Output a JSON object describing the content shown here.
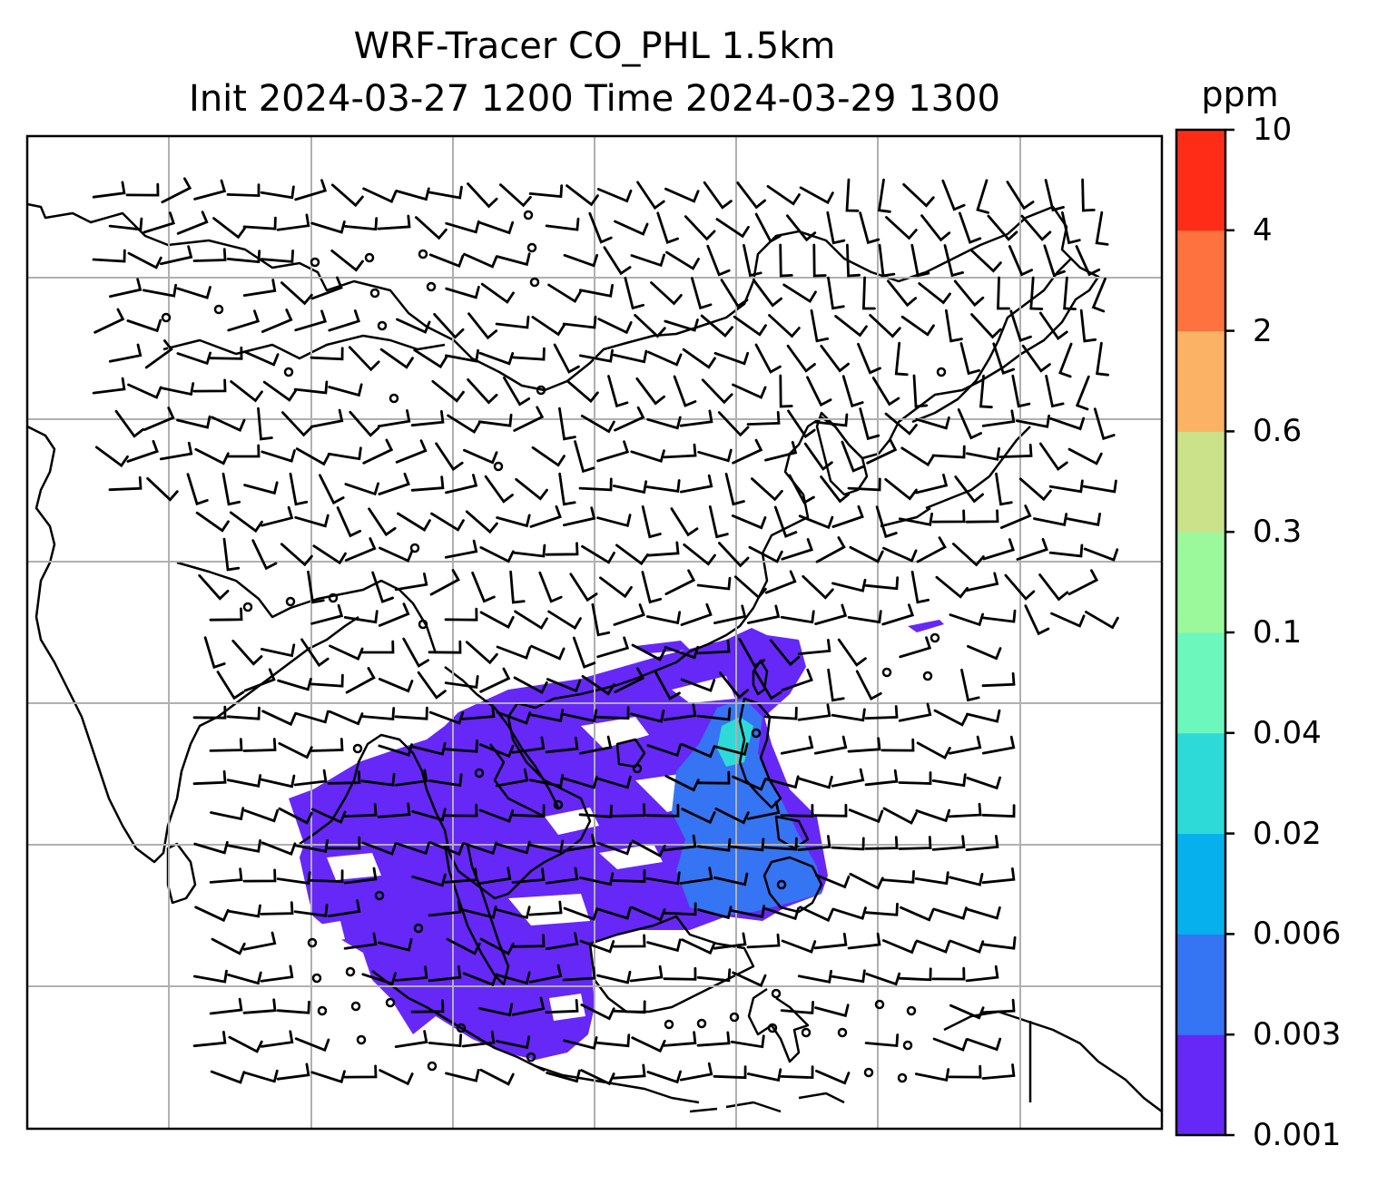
{
  "title": {
    "line1": "WRF-Tracer CO_PHL 1.5km",
    "line2": "Init 2024-03-27 1200 Time 2024-03-29 1300"
  },
  "colorbar": {
    "unit": "ppm",
    "ticks": [
      "0.001",
      "0.003",
      "0.006",
      "0.02",
      "0.04",
      "0.1",
      "0.3",
      "0.6",
      "2",
      "4",
      "10"
    ],
    "colors": [
      "#6528f7",
      "#3574f2",
      "#06b0ec",
      "#2ddad7",
      "#6cf7bd",
      "#9bf89b",
      "#cbe28a",
      "#fcb265",
      "#fe7240",
      "#ff2d18"
    ]
  },
  "map": {
    "land_outline_color": "#000000",
    "gridline_color": "#b0b0b0",
    "plume_colors": {
      "low": "#6528f7",
      "mid": "#3574f2",
      "high": "#2ddad7"
    }
  }
}
